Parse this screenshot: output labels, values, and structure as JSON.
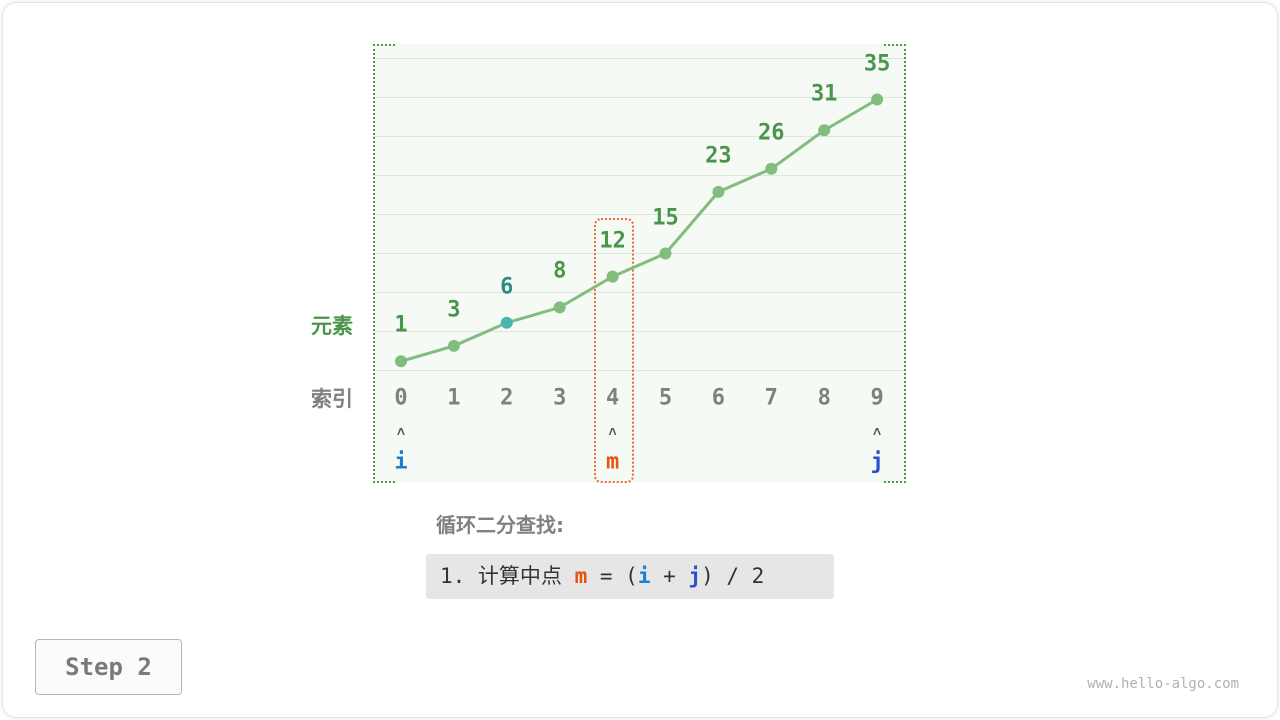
{
  "labels": {
    "element": "元素",
    "index": "索引"
  },
  "chart_data": {
    "type": "line",
    "values": [
      1,
      3,
      6,
      8,
      12,
      15,
      23,
      26,
      31,
      35
    ],
    "indices": [
      "0",
      "1",
      "2",
      "3",
      "4",
      "5",
      "6",
      "7",
      "8",
      "9"
    ],
    "highlight_index": 2,
    "mid_index": 4,
    "pointers": [
      {
        "name": "i",
        "index": 0,
        "color": "#1a7fd0"
      },
      {
        "name": "m",
        "index": 4,
        "color": "#e8520e"
      },
      {
        "name": "j",
        "index": 9,
        "color": "#2a4fd0"
      }
    ],
    "colors": {
      "line": "#82bc7e",
      "value_text": "#4b944b",
      "highlight_point": "#4ab6ad",
      "highlight_text": "#2f8a82"
    }
  },
  "pointer_arrow": "˄",
  "title": "循环二分查找:",
  "code": {
    "prefix": "1. 计算中点 ",
    "m": "m",
    "eq": " = (",
    "i": "i",
    "plus": " + ",
    "j": "j",
    "suffix": ") / 2"
  },
  "step_button": "Step 2",
  "watermark": "www.hello-algo.com"
}
